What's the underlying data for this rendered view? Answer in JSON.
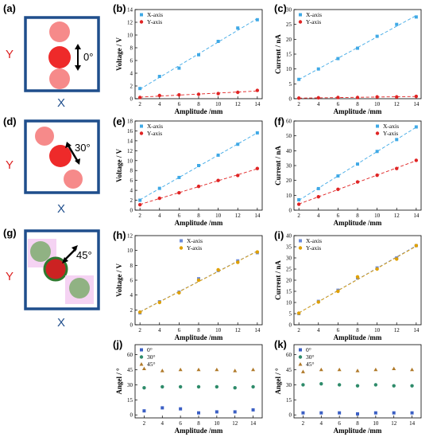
{
  "panels": {
    "a": {
      "label": "(a)",
      "angle": "0°",
      "x_axis": "X",
      "y_axis": "Y"
    },
    "d": {
      "label": "(d)",
      "angle": "30°",
      "x_axis": "X",
      "y_axis": "Y"
    },
    "g": {
      "label": "(g)",
      "angle": "45°",
      "x_axis": "X",
      "y_axis": "Y"
    }
  },
  "colors": {
    "x_series": "#3fa9e6",
    "y_series": "#e02424",
    "frame": "#1f4e8c",
    "magnet": "#ee2a2a"
  },
  "chart_data": [
    {
      "id": "b",
      "label": "(b)",
      "type": "scatter",
      "xlabel": "Amplitude /mm",
      "ylabel": "Voltage / V",
      "xlim": [
        1.5,
        14.5
      ],
      "ylim": [
        0,
        14
      ],
      "xticks": [
        2,
        4,
        6,
        8,
        10,
        12,
        14
      ],
      "yticks": [
        0,
        2,
        4,
        6,
        8,
        10,
        12,
        14
      ],
      "legend": "top-left",
      "fit_lines": true,
      "series": [
        {
          "name": "X-axis",
          "marker": "square",
          "color": "#3fa9e6",
          "x": [
            2,
            4,
            6,
            8,
            10,
            12,
            14
          ],
          "values": [
            1.6,
            3.5,
            4.8,
            6.9,
            9.0,
            11.1,
            12.4
          ]
        },
        {
          "name": "Y-axis",
          "marker": "circle",
          "color": "#e02424",
          "x": [
            2,
            4,
            6,
            8,
            10,
            12,
            14
          ],
          "values": [
            0.2,
            0.5,
            0.6,
            0.7,
            0.8,
            1.0,
            1.3
          ]
        }
      ]
    },
    {
      "id": "c",
      "label": "(c)",
      "type": "scatter",
      "xlabel": "Amplitude /mm",
      "ylabel": "Current / nA",
      "xlim": [
        1.5,
        14.5
      ],
      "ylim": [
        0,
        30
      ],
      "xticks": [
        2,
        4,
        6,
        8,
        10,
        12,
        14
      ],
      "yticks": [
        0,
        5,
        10,
        15,
        20,
        25,
        30
      ],
      "legend": "top-left",
      "fit_lines": true,
      "series": [
        {
          "name": "X-axis",
          "marker": "square",
          "color": "#3fa9e6",
          "x": [
            2,
            4,
            6,
            8,
            10,
            12,
            14
          ],
          "values": [
            6.5,
            10.0,
            13.5,
            17.0,
            21.0,
            25.0,
            27.5
          ]
        },
        {
          "name": "Y-axis",
          "marker": "circle",
          "color": "#e02424",
          "x": [
            2,
            4,
            6,
            8,
            10,
            12,
            14
          ],
          "values": [
            0.2,
            0.3,
            0.4,
            0.4,
            0.6,
            0.6,
            0.8
          ]
        }
      ]
    },
    {
      "id": "e",
      "label": "(e)",
      "type": "scatter",
      "xlabel": "Amplitude /mm",
      "ylabel": "Voltage / V",
      "xlim": [
        1.5,
        14.5
      ],
      "ylim": [
        0,
        18
      ],
      "xticks": [
        2,
        4,
        6,
        8,
        10,
        12,
        14
      ],
      "yticks": [
        0,
        2,
        4,
        6,
        8,
        10,
        12,
        14,
        16,
        18
      ],
      "legend": "top-left",
      "fit_lines": true,
      "series": [
        {
          "name": "X-axis",
          "marker": "square",
          "color": "#3fa9e6",
          "x": [
            2,
            4,
            6,
            8,
            10,
            12,
            14
          ],
          "values": [
            2.0,
            4.4,
            6.6,
            9.0,
            11.1,
            13.3,
            15.6
          ]
        },
        {
          "name": "Y-axis",
          "marker": "circle",
          "color": "#e02424",
          "x": [
            2,
            4,
            6,
            8,
            10,
            12,
            14
          ],
          "values": [
            1.1,
            2.4,
            3.5,
            4.8,
            6.0,
            7.0,
            8.4
          ]
        }
      ]
    },
    {
      "id": "f",
      "label": "(f)",
      "type": "scatter",
      "xlabel": "Amplitude /mm",
      "ylabel": "Current / nA",
      "xlim": [
        1.5,
        14.5
      ],
      "ylim": [
        0,
        60
      ],
      "xticks": [
        2,
        4,
        6,
        8,
        10,
        12,
        14
      ],
      "yticks": [
        0,
        10,
        20,
        30,
        40,
        50,
        60
      ],
      "legend": "top-right",
      "fit_lines": true,
      "series": [
        {
          "name": "X-axis",
          "marker": "square",
          "color": "#3fa9e6",
          "x": [
            2,
            4,
            6,
            8,
            10,
            12,
            14
          ],
          "values": [
            7.0,
            14.5,
            23.0,
            31.0,
            39.5,
            47.5,
            56.0
          ]
        },
        {
          "name": "Y-axis",
          "marker": "circle",
          "color": "#e02424",
          "x": [
            2,
            4,
            6,
            8,
            10,
            12,
            14
          ],
          "values": [
            4.0,
            9.0,
            14.0,
            19.0,
            23.5,
            28.0,
            33.5
          ]
        }
      ]
    },
    {
      "id": "h",
      "label": "(h)",
      "type": "scatter",
      "xlabel": "Amplitude /mm",
      "ylabel": "Voltage / V",
      "xlim": [
        1.5,
        14.5
      ],
      "ylim": [
        0,
        12
      ],
      "xticks": [
        2,
        4,
        6,
        8,
        10,
        12,
        14
      ],
      "yticks": [
        0,
        2,
        4,
        6,
        8,
        10,
        12
      ],
      "legend": "top-center",
      "fit_lines": true,
      "series": [
        {
          "name": "X-axis",
          "marker": "square",
          "color": "#6d8bd8",
          "x": [
            2,
            4,
            6,
            8,
            10,
            12,
            14
          ],
          "values": [
            1.6,
            3.1,
            4.4,
            6.2,
            7.3,
            8.6,
            9.7
          ]
        },
        {
          "name": "Y-axis",
          "marker": "circle",
          "color": "#e0a000",
          "x": [
            2,
            4,
            6,
            8,
            10,
            12,
            14
          ],
          "values": [
            1.7,
            3.0,
            4.3,
            6.0,
            7.4,
            8.4,
            9.8
          ]
        }
      ]
    },
    {
      "id": "i",
      "label": "(i)",
      "type": "scatter",
      "xlabel": "Amplitude /mm",
      "ylabel": "Current / nA",
      "xlim": [
        1.5,
        14.5
      ],
      "ylim": [
        0,
        40
      ],
      "xticks": [
        2,
        4,
        6,
        8,
        10,
        12,
        14
      ],
      "yticks": [
        0,
        5,
        10,
        15,
        20,
        25,
        30,
        35,
        40
      ],
      "legend": "top-left",
      "fit_lines": true,
      "series": [
        {
          "name": "X-axis",
          "marker": "square",
          "color": "#6d8bd8",
          "x": [
            2,
            4,
            6,
            8,
            10,
            12,
            14
          ],
          "values": [
            5.0,
            10.5,
            15.5,
            21.0,
            25.5,
            30.0,
            35.5
          ]
        },
        {
          "name": "Y-axis",
          "marker": "circle",
          "color": "#e0a000",
          "x": [
            2,
            4,
            6,
            8,
            10,
            12,
            14
          ],
          "values": [
            5.2,
            10.2,
            15.0,
            21.5,
            25.0,
            29.5,
            35.5
          ]
        }
      ]
    },
    {
      "id": "j",
      "label": "(j)",
      "type": "scatter",
      "xlabel": "Amplitude /mm",
      "ylabel": "Angel / °",
      "xlim": [
        1,
        15
      ],
      "ylim": [
        -3,
        70
      ],
      "xticks": [
        2,
        4,
        6,
        8,
        10,
        12,
        14
      ],
      "yticks": [
        0,
        15,
        30,
        45,
        60
      ],
      "legend": "top-left",
      "fit_lines": false,
      "series": [
        {
          "name": "0°",
          "marker": "square",
          "color": "#3b5fc4",
          "x": [
            2,
            4,
            6,
            8,
            10,
            12,
            14
          ],
          "values": [
            4,
            7,
            6,
            2,
            3,
            3,
            5
          ]
        },
        {
          "name": "30°",
          "marker": "circle",
          "color": "#2e8b6a",
          "x": [
            2,
            4,
            6,
            8,
            10,
            12,
            14
          ],
          "values": [
            27,
            28,
            28,
            28,
            28,
            27,
            28
          ]
        },
        {
          "name": "45°",
          "marker": "triangle",
          "color": "#b07a2a",
          "x": [
            2,
            4,
            6,
            8,
            10,
            12,
            14
          ],
          "values": [
            46,
            44,
            45,
            45,
            45,
            44,
            45
          ]
        }
      ]
    },
    {
      "id": "k",
      "label": "(k)",
      "type": "scatter",
      "xlabel": "Amplitude /mm",
      "ylabel": "Angel / °",
      "xlim": [
        1,
        15
      ],
      "ylim": [
        -3,
        70
      ],
      "xticks": [
        2,
        4,
        6,
        8,
        10,
        12,
        14
      ],
      "yticks": [
        0,
        15,
        30,
        45,
        60
      ],
      "legend": "top-left",
      "fit_lines": false,
      "series": [
        {
          "name": "0°",
          "marker": "square",
          "color": "#3b5fc4",
          "x": [
            2,
            4,
            6,
            8,
            10,
            12,
            14
          ],
          "values": [
            2,
            2,
            2,
            1,
            2,
            2,
            2
          ]
        },
        {
          "name": "30°",
          "marker": "circle",
          "color": "#2e8b6a",
          "x": [
            2,
            4,
            6,
            8,
            10,
            12,
            14
          ],
          "values": [
            30,
            31,
            30,
            29,
            30,
            29,
            29
          ]
        },
        {
          "name": "45°",
          "marker": "triangle",
          "color": "#b07a2a",
          "x": [
            2,
            4,
            6,
            8,
            10,
            12,
            14
          ],
          "values": [
            43,
            45,
            45,
            44,
            45,
            46,
            45
          ]
        }
      ]
    }
  ]
}
